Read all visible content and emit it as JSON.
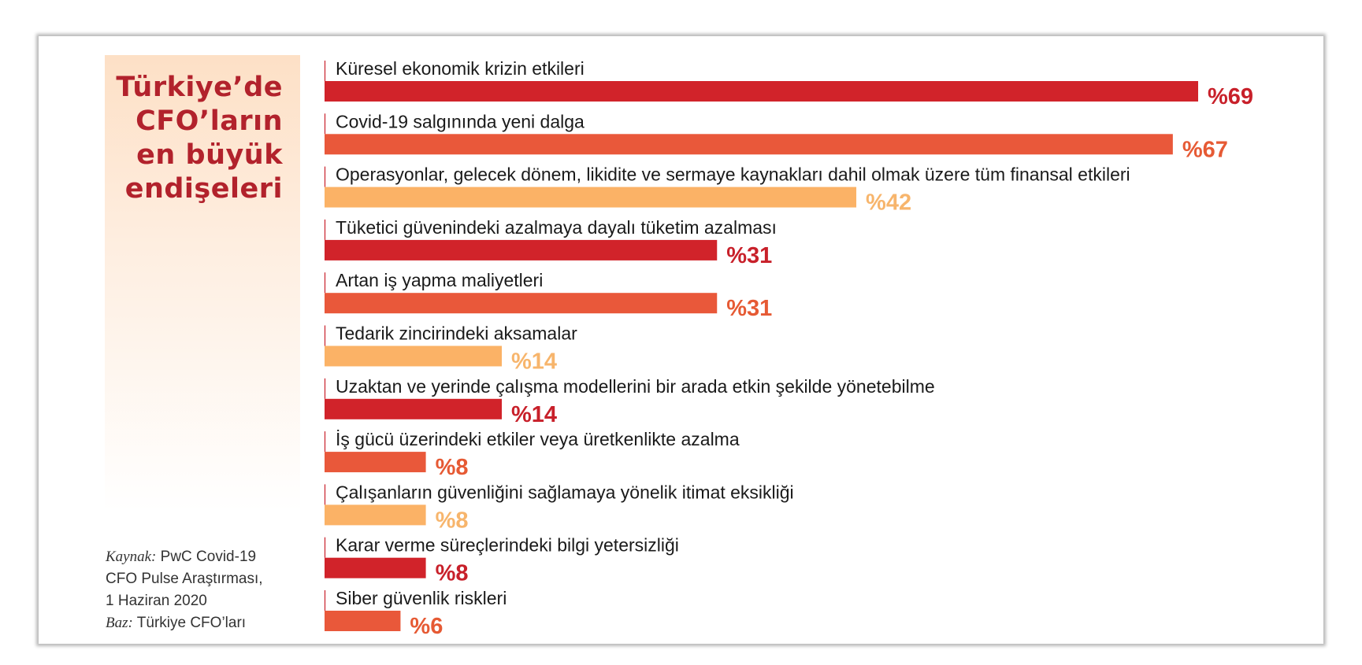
{
  "title_lines": [
    "Türkiye’de",
    "CFO’ların",
    "en büyük",
    "endişeleri"
  ],
  "source": {
    "kaynak_label": "Kaynak:",
    "kaynak_text": "PwC Covid-19",
    "line2": "CFO Pulse Araştırması,",
    "line3": "1 Haziran 2020",
    "baz_label": "Baz:",
    "baz_text": "Türkiye CFO’ları"
  },
  "chart_data": {
    "type": "bar",
    "orientation": "horizontal",
    "value_prefix": "%",
    "categories": [
      "Küresel ekonomik krizin etkileri",
      "Covid-19 salgınında yeni dalga",
      "Operasyonlar, gelecek dönem, likidite ve sermaye kaynakları dahil olmak üzere tüm finansal etkileri",
      "Tüketici güvenindeki azalmaya dayalı tüketim azalması",
      "Artan iş yapma maliyetleri",
      "Tedarik zincirindeki aksamalar",
      "Uzaktan ve yerinde çalışma modellerini bir arada etkin şekilde yönetebilme",
      "İş gücü üzerindeki etkiler veya üretkenlikte azalma",
      "Çalışanların güvenliğini sağlamaya yönelik itimat eksikliği",
      "Karar verme süreçlerindeki bilgi yetersizliği",
      "Siber güvenlik riskleri"
    ],
    "values": [
      69,
      67,
      42,
      31,
      31,
      14,
      14,
      8,
      8,
      8,
      6
    ],
    "value_labels": [
      "%69",
      "%67",
      "%42",
      "%31",
      "%31",
      "%14",
      "%14",
      "%8",
      "%8",
      "%8",
      "%6"
    ],
    "bar_colors": [
      "#d1232a",
      "#e9583a",
      "#fbb266",
      "#d1232a",
      "#e9583a",
      "#fbb266",
      "#d1232a",
      "#e9583a",
      "#fbb266",
      "#d1232a",
      "#e9583a"
    ],
    "label_colors": [
      "#c8202a",
      "#e65a34",
      "#f7b56c",
      "#c8202a",
      "#e65a34",
      "#f7b56c",
      "#c8202a",
      "#e65a34",
      "#f7b56c",
      "#c8202a",
      "#e65a34"
    ],
    "xlim": [
      0,
      69
    ],
    "grid": false,
    "legend": "none"
  },
  "colors": {
    "title": "#b2222c",
    "axis_tick": "#c8202a"
  }
}
